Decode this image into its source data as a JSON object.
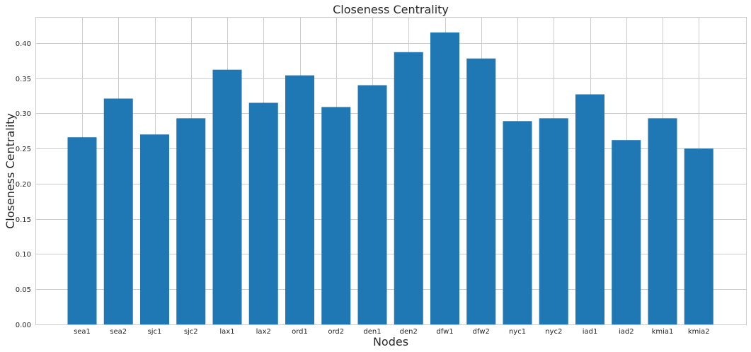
{
  "chart_data": {
    "type": "bar",
    "title": "Closeness Centrality",
    "xlabel": "Nodes",
    "ylabel": "Closeness Centrality",
    "categories": [
      "sea1",
      "sea2",
      "sjc1",
      "sjc2",
      "lax1",
      "lax2",
      "ord1",
      "ord2",
      "den1",
      "den2",
      "dfw1",
      "dfw2",
      "nyc1",
      "nyc2",
      "iad1",
      "iad2",
      "kmia1",
      "kmia2"
    ],
    "values": [
      0.266,
      0.321,
      0.27,
      0.293,
      0.362,
      0.315,
      0.354,
      0.309,
      0.34,
      0.387,
      0.415,
      0.378,
      0.289,
      0.293,
      0.327,
      0.262,
      0.293,
      0.25
    ],
    "ylim": [
      0,
      0.437
    ],
    "yticks": [
      "0.00",
      "0.05",
      "0.10",
      "0.15",
      "0.20",
      "0.25",
      "0.30",
      "0.35",
      "0.40"
    ],
    "grid": true,
    "bar_color": "#1f77b4"
  }
}
